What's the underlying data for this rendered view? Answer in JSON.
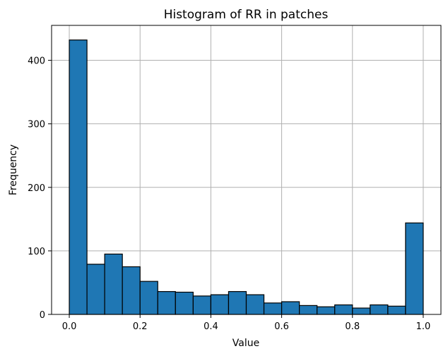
{
  "chart_data": {
    "type": "bar",
    "title": "Histogram of RR in patches",
    "xlabel": "Value",
    "ylabel": "Frequency",
    "xlim": [
      -0.05,
      1.05
    ],
    "ylim": [
      0,
      455
    ],
    "grid": true,
    "bar_color": "#1f77b4",
    "bar_edge_color": "#000000",
    "bin_edges": [
      0.0,
      0.05,
      0.1,
      0.15,
      0.2,
      0.25,
      0.3,
      0.35,
      0.4,
      0.45,
      0.5,
      0.55,
      0.6,
      0.65,
      0.7,
      0.75,
      0.8,
      0.85,
      0.9,
      0.95,
      1.0
    ],
    "values": [
      432,
      79,
      95,
      75,
      52,
      36,
      35,
      29,
      31,
      36,
      31,
      18,
      20,
      14,
      12,
      15,
      10,
      15,
      13,
      144
    ],
    "x_ticks": [
      {
        "value": 0.0,
        "label": "0.0"
      },
      {
        "value": 0.2,
        "label": "0.2"
      },
      {
        "value": 0.4,
        "label": "0.4"
      },
      {
        "value": 0.6,
        "label": "0.6"
      },
      {
        "value": 0.8,
        "label": "0.8"
      },
      {
        "value": 1.0,
        "label": "1.0"
      }
    ],
    "y_ticks": [
      {
        "value": 0,
        "label": "0"
      },
      {
        "value": 100,
        "label": "100"
      },
      {
        "value": 200,
        "label": "200"
      },
      {
        "value": 300,
        "label": "300"
      },
      {
        "value": 400,
        "label": "400"
      }
    ]
  }
}
